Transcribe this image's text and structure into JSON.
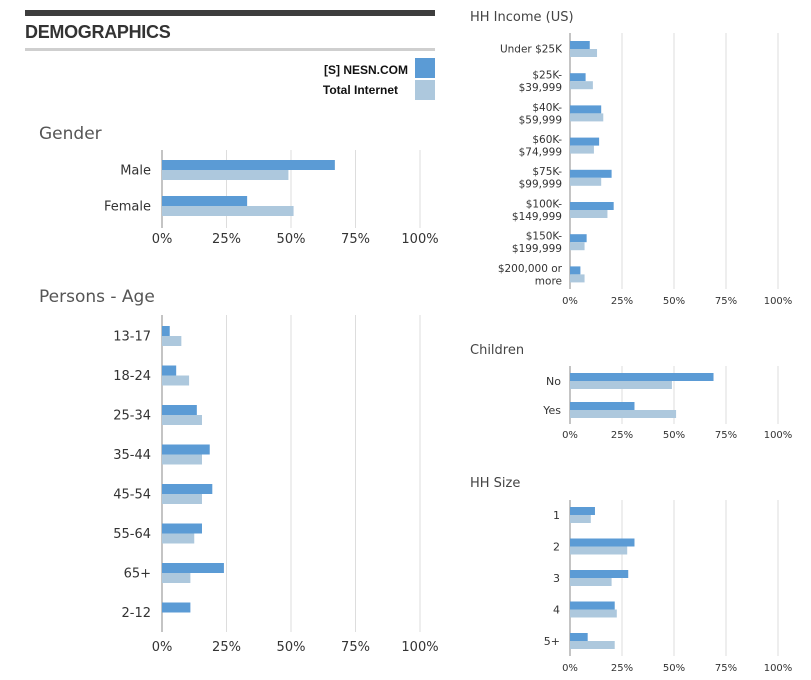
{
  "page": {
    "heading": "DEMOGRAPHICS"
  },
  "legend": {
    "series": [
      {
        "label": "[S] NESN.COM",
        "color": "#5b9bd5"
      },
      {
        "label": "Total Internet",
        "color": "#adc8dd"
      }
    ]
  },
  "chart_data": [
    {
      "id": "gender",
      "type": "bar",
      "orientation": "horizontal",
      "title": "Gender",
      "categories": [
        "Male",
        "Female"
      ],
      "series": [
        {
          "name": "[S] NESN.COM",
          "values": [
            67,
            33
          ]
        },
        {
          "name": "Total Internet",
          "values": [
            49,
            51
          ]
        }
      ],
      "xlim": [
        0,
        100
      ],
      "ticks": [
        "0%",
        "25%",
        "50%",
        "75%",
        "100%"
      ],
      "grid": true
    },
    {
      "id": "age",
      "type": "bar",
      "orientation": "horizontal",
      "title": "Persons - Age",
      "categories": [
        "13-17",
        "18-24",
        "25-34",
        "35-44",
        "45-54",
        "55-64",
        "65+",
        "2-12"
      ],
      "series": [
        {
          "name": "[S] NESN.COM",
          "values": [
            3,
            5.5,
            13.5,
            18.5,
            19.5,
            15.5,
            24,
            11
          ]
        },
        {
          "name": "Total Internet",
          "values": [
            7.5,
            10.5,
            15.5,
            15.5,
            15.5,
            12.5,
            11,
            null
          ]
        }
      ],
      "xlim": [
        0,
        100
      ],
      "ticks": [
        "0%",
        "25%",
        "50%",
        "75%",
        "100%"
      ],
      "grid": true
    },
    {
      "id": "income",
      "type": "bar",
      "orientation": "horizontal",
      "title": "HH Income (US)",
      "categories": [
        [
          "Under $25K"
        ],
        [
          "$25K-",
          "$39,999"
        ],
        [
          "$40K-",
          "$59,999"
        ],
        [
          "$60K-",
          "$74,999"
        ],
        [
          "$75K-",
          "$99,999"
        ],
        [
          "$100K-",
          "$149,999"
        ],
        [
          "$150K-",
          "$199,999"
        ],
        [
          "$200,000 or",
          "more"
        ]
      ],
      "series": [
        {
          "name": "[S] NESN.COM",
          "values": [
            9.5,
            7.5,
            15,
            14,
            20,
            21,
            8,
            5
          ]
        },
        {
          "name": "Total Internet",
          "values": [
            13,
            11,
            16,
            11.5,
            15,
            18,
            7,
            7
          ]
        }
      ],
      "xlim": [
        0,
        100
      ],
      "ticks": [
        "0%",
        "25%",
        "50%",
        "75%",
        "100%"
      ],
      "grid": true
    },
    {
      "id": "children",
      "type": "bar",
      "orientation": "horizontal",
      "title": "Children",
      "categories": [
        "No",
        "Yes"
      ],
      "series": [
        {
          "name": "[S] NESN.COM",
          "values": [
            69,
            31
          ]
        },
        {
          "name": "Total Internet",
          "values": [
            49,
            51
          ]
        }
      ],
      "xlim": [
        0,
        100
      ],
      "ticks": [
        "0%",
        "25%",
        "50%",
        "75%",
        "100%"
      ],
      "grid": true
    },
    {
      "id": "hhsize",
      "type": "bar",
      "orientation": "horizontal",
      "title": "HH Size",
      "categories": [
        "1",
        "2",
        "3",
        "4",
        "5+"
      ],
      "series": [
        {
          "name": "[S] NESN.COM",
          "values": [
            12,
            31,
            28,
            21.5,
            8.5
          ]
        },
        {
          "name": "Total Internet",
          "values": [
            10,
            27.5,
            20,
            22.5,
            21.5
          ]
        }
      ],
      "xlim": [
        0,
        100
      ],
      "ticks": [
        "0%",
        "25%",
        "50%",
        "75%",
        "100%"
      ],
      "grid": true
    }
  ]
}
